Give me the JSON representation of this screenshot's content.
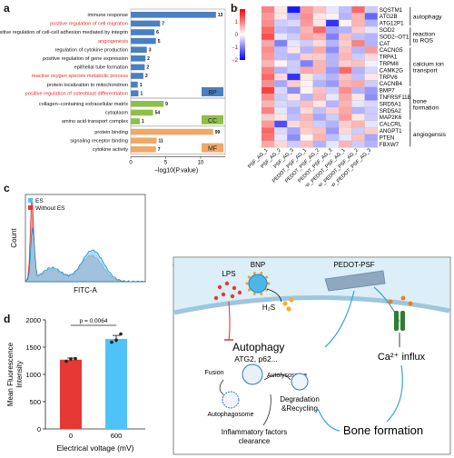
{
  "panels": {
    "a": "a",
    "b": "b",
    "c": "c",
    "d": "d",
    "e": "e"
  },
  "colors": {
    "bp": "#4a7fc2",
    "cc": "#8fbf4a",
    "mf": "#f0a868",
    "red": "#e52a2a",
    "es": "#4fc3f7",
    "noes": "#e53935"
  },
  "chart_data": [
    {
      "type": "bar",
      "panel": "a",
      "xlabel": "−log10(P.value)",
      "xticks": [
        "0",
        "5",
        "10"
      ],
      "xlim": [
        0,
        13
      ],
      "groups": [
        {
          "name": "BP",
          "items": [
            {
              "label": "immune response",
              "value": 13,
              "highlight": false
            },
            {
              "label": "positive regulation of cell migration",
              "value": 7,
              "highlight": true
            },
            {
              "label": "positive regulation of cell-cell adhesion mediated by integrin",
              "value": 6,
              "highlight": false
            },
            {
              "label": "angiogenesis",
              "value": 5,
              "highlight": true
            },
            {
              "label": "regulation of cytokine production",
              "value": 3,
              "highlight": false
            },
            {
              "label": "positive regulation of gene expression",
              "value": 2,
              "highlight": false
            },
            {
              "label": "epithelial tube formation",
              "value": 2,
              "highlight": false
            },
            {
              "label": "reactive oxygen species metabolic process",
              "value": 2,
              "highlight": true
            },
            {
              "label": "protein localization to mitochondrion",
              "value": 1,
              "highlight": false
            },
            {
              "label": "positive regulation of osteoblast differentiation",
              "value": 1,
              "highlight": true
            }
          ]
        },
        {
          "name": "CC",
          "items": [
            {
              "label": "collagen−containing extracellular matrix",
              "value": 9,
              "highlight": false
            },
            {
              "label": "cytoplasm",
              "value": 54,
              "highlight": false
            },
            {
              "label": "amino acid transport complex",
              "value": 1,
              "highlight": false
            }
          ]
        },
        {
          "name": "MF",
          "items": [
            {
              "label": "protein binding",
              "value": 99,
              "highlight": false
            },
            {
              "label": "signaling receptor binding",
              "value": 11,
              "highlight": false
            },
            {
              "label": "cytokine activity",
              "value": 7,
              "highlight": false
            }
          ]
        }
      ],
      "bar_lengths": [
        12.2,
        4.2,
        3.4,
        3.6,
        2.3,
        2.1,
        2.0,
        1.8,
        1.0,
        1.1,
        4.7,
        3.2,
        1.3,
        11.8,
        3.7,
        3.6
      ]
    },
    {
      "type": "heatmap",
      "panel": "b",
      "columns": [
        "PSF_AG_1",
        "PSF_AG_2",
        "PSF_AG_3",
        "PEDOT_PSF_AG_1",
        "PEDOT_PSF_AG_2",
        "PEDOT_PSF_AG_3",
        "BNP_PEDOT_PSF_AG_1",
        "BNP_PEDOT_PSF_AG_2",
        "BNP_PEDOT_PSF_AG_3"
      ],
      "rows": [
        "SQSTM1",
        "ATG2B",
        "ATG12P1",
        "SOD2",
        "SOD2−OT1",
        "CAT",
        "CACNG5",
        "TRPA1",
        "TRPM8",
        "CAMK2G",
        "TRPV6",
        "CACNB4",
        "BMP7",
        "TNFRSF11B",
        "SRD5A1",
        "SRD5A2",
        "MAP2K6",
        "CALCRL",
        "ANGPT1",
        "PTEN",
        "FBXW7"
      ],
      "row_groups": [
        {
          "name": "autophagy",
          "start": 0,
          "end": 2
        },
        {
          "name": "reaction to ROS",
          "start": 3,
          "end": 5
        },
        {
          "name": "calcium ion transport",
          "start": 6,
          "end": 11
        },
        {
          "name": "bone formation",
          "start": 12,
          "end": 16
        },
        {
          "name": "angiogensis",
          "start": 17,
          "end": 20
        }
      ],
      "scale_ticks": [
        "2",
        "1",
        "0",
        "−1",
        "−2"
      ],
      "values": [
        [
          1.0,
          0.2,
          -1.8,
          0.8,
          0.5,
          -0.2,
          -0.5,
          1.2,
          -0.4
        ],
        [
          0.8,
          0.2,
          -0.6,
          0.9,
          0.2,
          0.1,
          -0.6,
          0.6,
          -1.2
        ],
        [
          0.9,
          -0.4,
          -0.3,
          0.8,
          0.2,
          -1.6,
          0.1,
          0.6,
          -0.6
        ],
        [
          1.2,
          -0.5,
          -0.6,
          0.6,
          1.2,
          -0.7,
          -0.6,
          0.4,
          -0.2
        ],
        [
          1.4,
          -0.2,
          -0.4,
          0.7,
          0.6,
          -1.0,
          0.5,
          -0.5,
          -0.6
        ],
        [
          0.7,
          -1.0,
          -0.2,
          -0.4,
          0.3,
          -0.6,
          0.4,
          1.0,
          -0.6
        ],
        [
          0.9,
          -0.5,
          0.2,
          -0.6,
          0.7,
          -0.9,
          0.5,
          -0.6,
          0.8
        ],
        [
          0.8,
          -0.5,
          -0.6,
          0.4,
          0.4,
          -0.6,
          0.6,
          -0.4,
          0.3
        ],
        [
          0.6,
          0.1,
          -0.4,
          -1.0,
          0.6,
          -0.6,
          0.4,
          0.5,
          -0.1
        ],
        [
          1.0,
          -0.6,
          -0.4,
          0.7,
          0.6,
          -0.8,
          1.2,
          -0.6,
          -0.3
        ],
        [
          1.2,
          0.3,
          -1.6,
          0.2,
          -0.4,
          -0.6,
          0.5,
          -0.5,
          0.2
        ],
        [
          0.9,
          -0.7,
          0.4,
          0.1,
          -0.6,
          -0.8,
          0.6,
          0.7,
          -0.4
        ],
        [
          1.5,
          -0.3,
          -0.9,
          0.1,
          0.5,
          -0.4,
          0.9,
          -0.6,
          -0.8
        ],
        [
          0.9,
          -0.4,
          0.2,
          -0.6,
          0.6,
          -0.2,
          0.7,
          0.2,
          -0.9
        ],
        [
          0.6,
          -0.3,
          -0.4,
          0.5,
          0.2,
          -0.6,
          0.6,
          -0.2,
          -0.3
        ],
        [
          1.0,
          -0.2,
          -0.6,
          0.3,
          -0.5,
          0.4,
          0.7,
          -0.6,
          -0.4
        ],
        [
          0.4,
          0.2,
          -0.5,
          0.6,
          -0.7,
          -0.4,
          0.8,
          0.2,
          -0.4
        ],
        [
          0.8,
          -1.4,
          0.3,
          0.5,
          -0.4,
          -0.6,
          0.4,
          0.6,
          -0.2
        ],
        [
          1.2,
          -0.3,
          -0.7,
          0.4,
          0.5,
          -0.8,
          0.3,
          -0.4,
          0.4
        ],
        [
          1.1,
          -0.2,
          -0.9,
          0.1,
          0.6,
          -0.5,
          -0.2,
          0.5,
          -0.7
        ],
        [
          0.7,
          0.3,
          -0.4,
          0.5,
          -0.6,
          -0.2,
          0.6,
          -0.4,
          -0.6
        ]
      ]
    },
    {
      "type": "area",
      "panel": "c",
      "xlabel": "FITC-A",
      "ylabel": "Count",
      "series": [
        {
          "name": "ES"
        },
        {
          "name": "Without ES"
        }
      ]
    },
    {
      "type": "bar",
      "panel": "d",
      "xlabel": "Electrical voltage (mV)",
      "ylabel": "Mean Fluorescence Intensity",
      "categories": [
        "0",
        "600"
      ],
      "values": [
        1270,
        1650
      ],
      "errors": [
        30,
        65
      ],
      "points": [
        [
          1240,
          1285,
          1290
        ],
        [
          1590,
          1630,
          1740
        ]
      ],
      "yticks": [
        0,
        500,
        1000,
        1500,
        2000
      ],
      "ylim": [
        0,
        2000
      ],
      "pvalue": "p = 0.0064"
    }
  ],
  "schematic": {
    "bnp": "BNP",
    "pedot": "PEDOT-PSF",
    "lps": "LPS",
    "h2s": "H₂S",
    "autophagy": "Autophagy",
    "atg": "ATG2, p62...",
    "autolysosome": "Autolysosome",
    "fusion": "Fusion",
    "autophagosome": "Autophagosome",
    "degradation": "Degradation",
    "recycling": "&Recycling",
    "inflammatory": "Inflammatory factors",
    "clearance": "clearance",
    "ca_influx": "Ca²⁺ influx",
    "bone": "Bone formation"
  }
}
